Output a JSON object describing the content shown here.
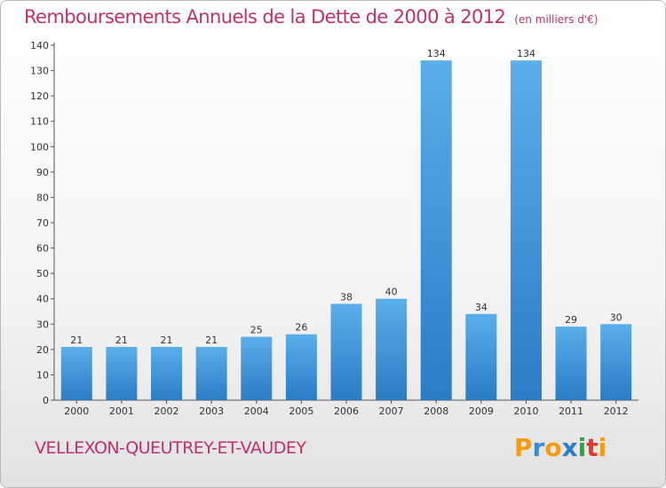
{
  "chart_data": {
    "type": "bar",
    "title": "Remboursements Annuels de la Dette de 2000 à 2012",
    "unit": "(en milliers d'€)",
    "categories": [
      "2000",
      "2001",
      "2002",
      "2003",
      "2004",
      "2005",
      "2006",
      "2007",
      "2008",
      "2009",
      "2010",
      "2011",
      "2012"
    ],
    "values": [
      21,
      21,
      21,
      21,
      25,
      26,
      38,
      40,
      134,
      34,
      134,
      29,
      30
    ],
    "data_labels": [
      "21",
      "21",
      "21",
      "21",
      "25",
      "26",
      "38",
      "40",
      "134",
      "34",
      "134",
      "29",
      "30"
    ],
    "yticks": [
      0,
      10,
      20,
      30,
      40,
      50,
      60,
      70,
      80,
      90,
      100,
      110,
      120,
      130,
      140
    ],
    "ylim": [
      0,
      140
    ],
    "xlabel": "",
    "ylabel": "",
    "bar_color": "#3a8fd6",
    "grid": false
  },
  "footer": {
    "commune": "VELLEXON-QUEUTREY-ET-VAUDEY"
  },
  "logo": {
    "text": "Proxiti",
    "letters": [
      "P",
      "r",
      "o",
      "x",
      "i",
      "t",
      "i"
    ],
    "colors": [
      "#f39c12",
      "#3b8bd0",
      "#f39c12",
      "#2a7fc7",
      "#27a844",
      "#e03a2f",
      "#f39c12"
    ]
  },
  "colors": {
    "title": "#c0306a",
    "axis": "#333333"
  }
}
